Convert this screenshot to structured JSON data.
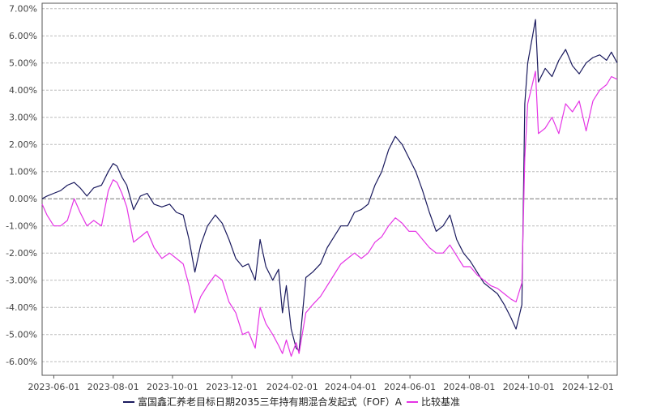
{
  "chart_data": {
    "type": "line",
    "title": "",
    "xlabel": "",
    "ylabel": "",
    "ylim": [
      -6.5,
      7.2
    ],
    "y_ticks": [
      -6,
      -5,
      -4,
      -3,
      -2,
      -1,
      0,
      1,
      2,
      3,
      4,
      5,
      6,
      7
    ],
    "y_tick_labels": [
      "-6.00%",
      "-5.00%",
      "-4.00%",
      "-3.00%",
      "-2.00%",
      "-1.00%",
      "0.00%",
      "1.00%",
      "2.00%",
      "3.00%",
      "4.00%",
      "5.00%",
      "6.00%",
      "7.00%"
    ],
    "xlim": [
      "2023-05-20",
      "2024-12-31"
    ],
    "x_ticks": [
      "2023-06-01",
      "2023-08-01",
      "2023-10-01",
      "2023-12-01",
      "2024-02-01",
      "2024-04-01",
      "2024-06-01",
      "2024-08-01",
      "2024-10-01",
      "2024-12-01"
    ],
    "grid": true,
    "legend_position": "bottom",
    "series": [
      {
        "name": "富国鑫汇养老目标日期2035三年持有期混合发起式（FOF）A",
        "color": "#1a1a5e",
        "points": [
          [
            "2023-05-20",
            0.0
          ],
          [
            "2023-05-25",
            0.1
          ],
          [
            "2023-06-01",
            0.2
          ],
          [
            "2023-06-08",
            0.3
          ],
          [
            "2023-06-15",
            0.5
          ],
          [
            "2023-06-22",
            0.6
          ],
          [
            "2023-06-28",
            0.4
          ],
          [
            "2023-07-05",
            0.1
          ],
          [
            "2023-07-12",
            0.4
          ],
          [
            "2023-07-20",
            0.5
          ],
          [
            "2023-07-27",
            1.0
          ],
          [
            "2023-08-01",
            1.3
          ],
          [
            "2023-08-05",
            1.2
          ],
          [
            "2023-08-10",
            0.8
          ],
          [
            "2023-08-15",
            0.5
          ],
          [
            "2023-08-22",
            -0.4
          ],
          [
            "2023-08-29",
            0.1
          ],
          [
            "2023-09-05",
            0.2
          ],
          [
            "2023-09-12",
            -0.2
          ],
          [
            "2023-09-20",
            -0.3
          ],
          [
            "2023-09-28",
            -0.2
          ],
          [
            "2023-10-05",
            -0.5
          ],
          [
            "2023-10-12",
            -0.6
          ],
          [
            "2023-10-18",
            -1.5
          ],
          [
            "2023-10-24",
            -2.7
          ],
          [
            "2023-10-30",
            -1.7
          ],
          [
            "2023-11-06",
            -1.0
          ],
          [
            "2023-11-14",
            -0.6
          ],
          [
            "2023-11-21",
            -0.9
          ],
          [
            "2023-11-28",
            -1.5
          ],
          [
            "2023-12-05",
            -2.2
          ],
          [
            "2023-12-12",
            -2.5
          ],
          [
            "2023-12-18",
            -2.4
          ],
          [
            "2023-12-25",
            -3.0
          ],
          [
            "2023-12-30",
            -1.5
          ],
          [
            "2024-01-05",
            -2.5
          ],
          [
            "2024-01-12",
            -3.0
          ],
          [
            "2024-01-18",
            -2.6
          ],
          [
            "2024-01-22",
            -4.2
          ],
          [
            "2024-01-26",
            -3.2
          ],
          [
            "2024-01-31",
            -4.8
          ],
          [
            "2024-02-05",
            -5.5
          ],
          [
            "2024-02-08",
            -5.6
          ],
          [
            "2024-02-15",
            -2.9
          ],
          [
            "2024-02-22",
            -2.7
          ],
          [
            "2024-03-01",
            -2.4
          ],
          [
            "2024-03-08",
            -1.8
          ],
          [
            "2024-03-15",
            -1.4
          ],
          [
            "2024-03-22",
            -1.0
          ],
          [
            "2024-03-29",
            -1.0
          ],
          [
            "2024-04-05",
            -0.5
          ],
          [
            "2024-04-12",
            -0.4
          ],
          [
            "2024-04-19",
            -0.2
          ],
          [
            "2024-04-26",
            0.5
          ],
          [
            "2024-05-03",
            1.0
          ],
          [
            "2024-05-10",
            1.8
          ],
          [
            "2024-05-17",
            2.3
          ],
          [
            "2024-05-24",
            2.0
          ],
          [
            "2024-05-31",
            1.5
          ],
          [
            "2024-06-07",
            1.0
          ],
          [
            "2024-06-14",
            0.3
          ],
          [
            "2024-06-21",
            -0.5
          ],
          [
            "2024-06-28",
            -1.2
          ],
          [
            "2024-07-05",
            -1.0
          ],
          [
            "2024-07-12",
            -0.6
          ],
          [
            "2024-07-19",
            -1.5
          ],
          [
            "2024-07-26",
            -2.0
          ],
          [
            "2024-08-02",
            -2.3
          ],
          [
            "2024-08-09",
            -2.7
          ],
          [
            "2024-08-16",
            -3.1
          ],
          [
            "2024-08-23",
            -3.3
          ],
          [
            "2024-08-30",
            -3.5
          ],
          [
            "2024-09-06",
            -3.9
          ],
          [
            "2024-09-13",
            -4.4
          ],
          [
            "2024-09-18",
            -4.8
          ],
          [
            "2024-09-24",
            -3.9
          ],
          [
            "2024-09-27",
            3.5
          ],
          [
            "2024-09-30",
            5.0
          ],
          [
            "2024-10-08",
            6.6
          ],
          [
            "2024-10-11",
            4.3
          ],
          [
            "2024-10-18",
            4.8
          ],
          [
            "2024-10-25",
            4.5
          ],
          [
            "2024-11-01",
            5.1
          ],
          [
            "2024-11-08",
            5.5
          ],
          [
            "2024-11-15",
            4.9
          ],
          [
            "2024-11-22",
            4.6
          ],
          [
            "2024-11-29",
            5.0
          ],
          [
            "2024-12-06",
            5.2
          ],
          [
            "2024-12-13",
            5.3
          ],
          [
            "2024-12-20",
            5.1
          ],
          [
            "2024-12-25",
            5.4
          ],
          [
            "2024-12-31",
            5.0
          ]
        ]
      },
      {
        "name": "比较基准",
        "color": "#e534e5",
        "points": [
          [
            "2023-05-20",
            -0.2
          ],
          [
            "2023-05-25",
            -0.6
          ],
          [
            "2023-06-01",
            -1.0
          ],
          [
            "2023-06-08",
            -1.0
          ],
          [
            "2023-06-15",
            -0.8
          ],
          [
            "2023-06-22",
            0.0
          ],
          [
            "2023-06-28",
            -0.5
          ],
          [
            "2023-07-05",
            -1.0
          ],
          [
            "2023-07-12",
            -0.8
          ],
          [
            "2023-07-20",
            -1.0
          ],
          [
            "2023-07-27",
            0.3
          ],
          [
            "2023-08-01",
            0.7
          ],
          [
            "2023-08-05",
            0.6
          ],
          [
            "2023-08-10",
            0.2
          ],
          [
            "2023-08-15",
            -0.3
          ],
          [
            "2023-08-22",
            -1.6
          ],
          [
            "2023-08-29",
            -1.4
          ],
          [
            "2023-09-05",
            -1.2
          ],
          [
            "2023-09-12",
            -1.8
          ],
          [
            "2023-09-20",
            -2.2
          ],
          [
            "2023-09-28",
            -2.0
          ],
          [
            "2023-10-05",
            -2.2
          ],
          [
            "2023-10-12",
            -2.4
          ],
          [
            "2023-10-18",
            -3.2
          ],
          [
            "2023-10-24",
            -4.2
          ],
          [
            "2023-10-30",
            -3.6
          ],
          [
            "2023-11-06",
            -3.2
          ],
          [
            "2023-11-14",
            -2.8
          ],
          [
            "2023-11-21",
            -3.0
          ],
          [
            "2023-11-28",
            -3.8
          ],
          [
            "2023-12-05",
            -4.2
          ],
          [
            "2023-12-12",
            -5.0
          ],
          [
            "2023-12-18",
            -4.9
          ],
          [
            "2023-12-25",
            -5.5
          ],
          [
            "2023-12-30",
            -4.0
          ],
          [
            "2024-01-05",
            -4.6
          ],
          [
            "2024-01-12",
            -5.0
          ],
          [
            "2024-01-18",
            -5.4
          ],
          [
            "2024-01-22",
            -5.7
          ],
          [
            "2024-01-26",
            -5.2
          ],
          [
            "2024-01-31",
            -5.8
          ],
          [
            "2024-02-05",
            -5.3
          ],
          [
            "2024-02-08",
            -5.7
          ],
          [
            "2024-02-15",
            -4.2
          ],
          [
            "2024-02-22",
            -3.9
          ],
          [
            "2024-03-01",
            -3.6
          ],
          [
            "2024-03-08",
            -3.2
          ],
          [
            "2024-03-15",
            -2.8
          ],
          [
            "2024-03-22",
            -2.4
          ],
          [
            "2024-03-29",
            -2.2
          ],
          [
            "2024-04-05",
            -2.0
          ],
          [
            "2024-04-12",
            -2.2
          ],
          [
            "2024-04-19",
            -2.0
          ],
          [
            "2024-04-26",
            -1.6
          ],
          [
            "2024-05-03",
            -1.4
          ],
          [
            "2024-05-10",
            -1.0
          ],
          [
            "2024-05-17",
            -0.7
          ],
          [
            "2024-05-24",
            -0.9
          ],
          [
            "2024-05-31",
            -1.2
          ],
          [
            "2024-06-07",
            -1.2
          ],
          [
            "2024-06-14",
            -1.5
          ],
          [
            "2024-06-21",
            -1.8
          ],
          [
            "2024-06-28",
            -2.0
          ],
          [
            "2024-07-05",
            -2.0
          ],
          [
            "2024-07-12",
            -1.7
          ],
          [
            "2024-07-19",
            -2.1
          ],
          [
            "2024-07-26",
            -2.5
          ],
          [
            "2024-08-02",
            -2.5
          ],
          [
            "2024-08-09",
            -2.8
          ],
          [
            "2024-08-16",
            -3.0
          ],
          [
            "2024-08-23",
            -3.2
          ],
          [
            "2024-08-30",
            -3.3
          ],
          [
            "2024-09-06",
            -3.5
          ],
          [
            "2024-09-13",
            -3.7
          ],
          [
            "2024-09-18",
            -3.8
          ],
          [
            "2024-09-24",
            -3.1
          ],
          [
            "2024-09-27",
            1.5
          ],
          [
            "2024-09-30",
            3.5
          ],
          [
            "2024-10-08",
            4.7
          ],
          [
            "2024-10-11",
            2.4
          ],
          [
            "2024-10-18",
            2.6
          ],
          [
            "2024-10-25",
            3.0
          ],
          [
            "2024-11-01",
            2.4
          ],
          [
            "2024-11-08",
            3.5
          ],
          [
            "2024-11-15",
            3.2
          ],
          [
            "2024-11-22",
            3.6
          ],
          [
            "2024-11-29",
            2.5
          ],
          [
            "2024-12-06",
            3.6
          ],
          [
            "2024-12-13",
            4.0
          ],
          [
            "2024-12-20",
            4.2
          ],
          [
            "2024-12-25",
            4.5
          ],
          [
            "2024-12-31",
            4.4
          ]
        ]
      }
    ]
  }
}
